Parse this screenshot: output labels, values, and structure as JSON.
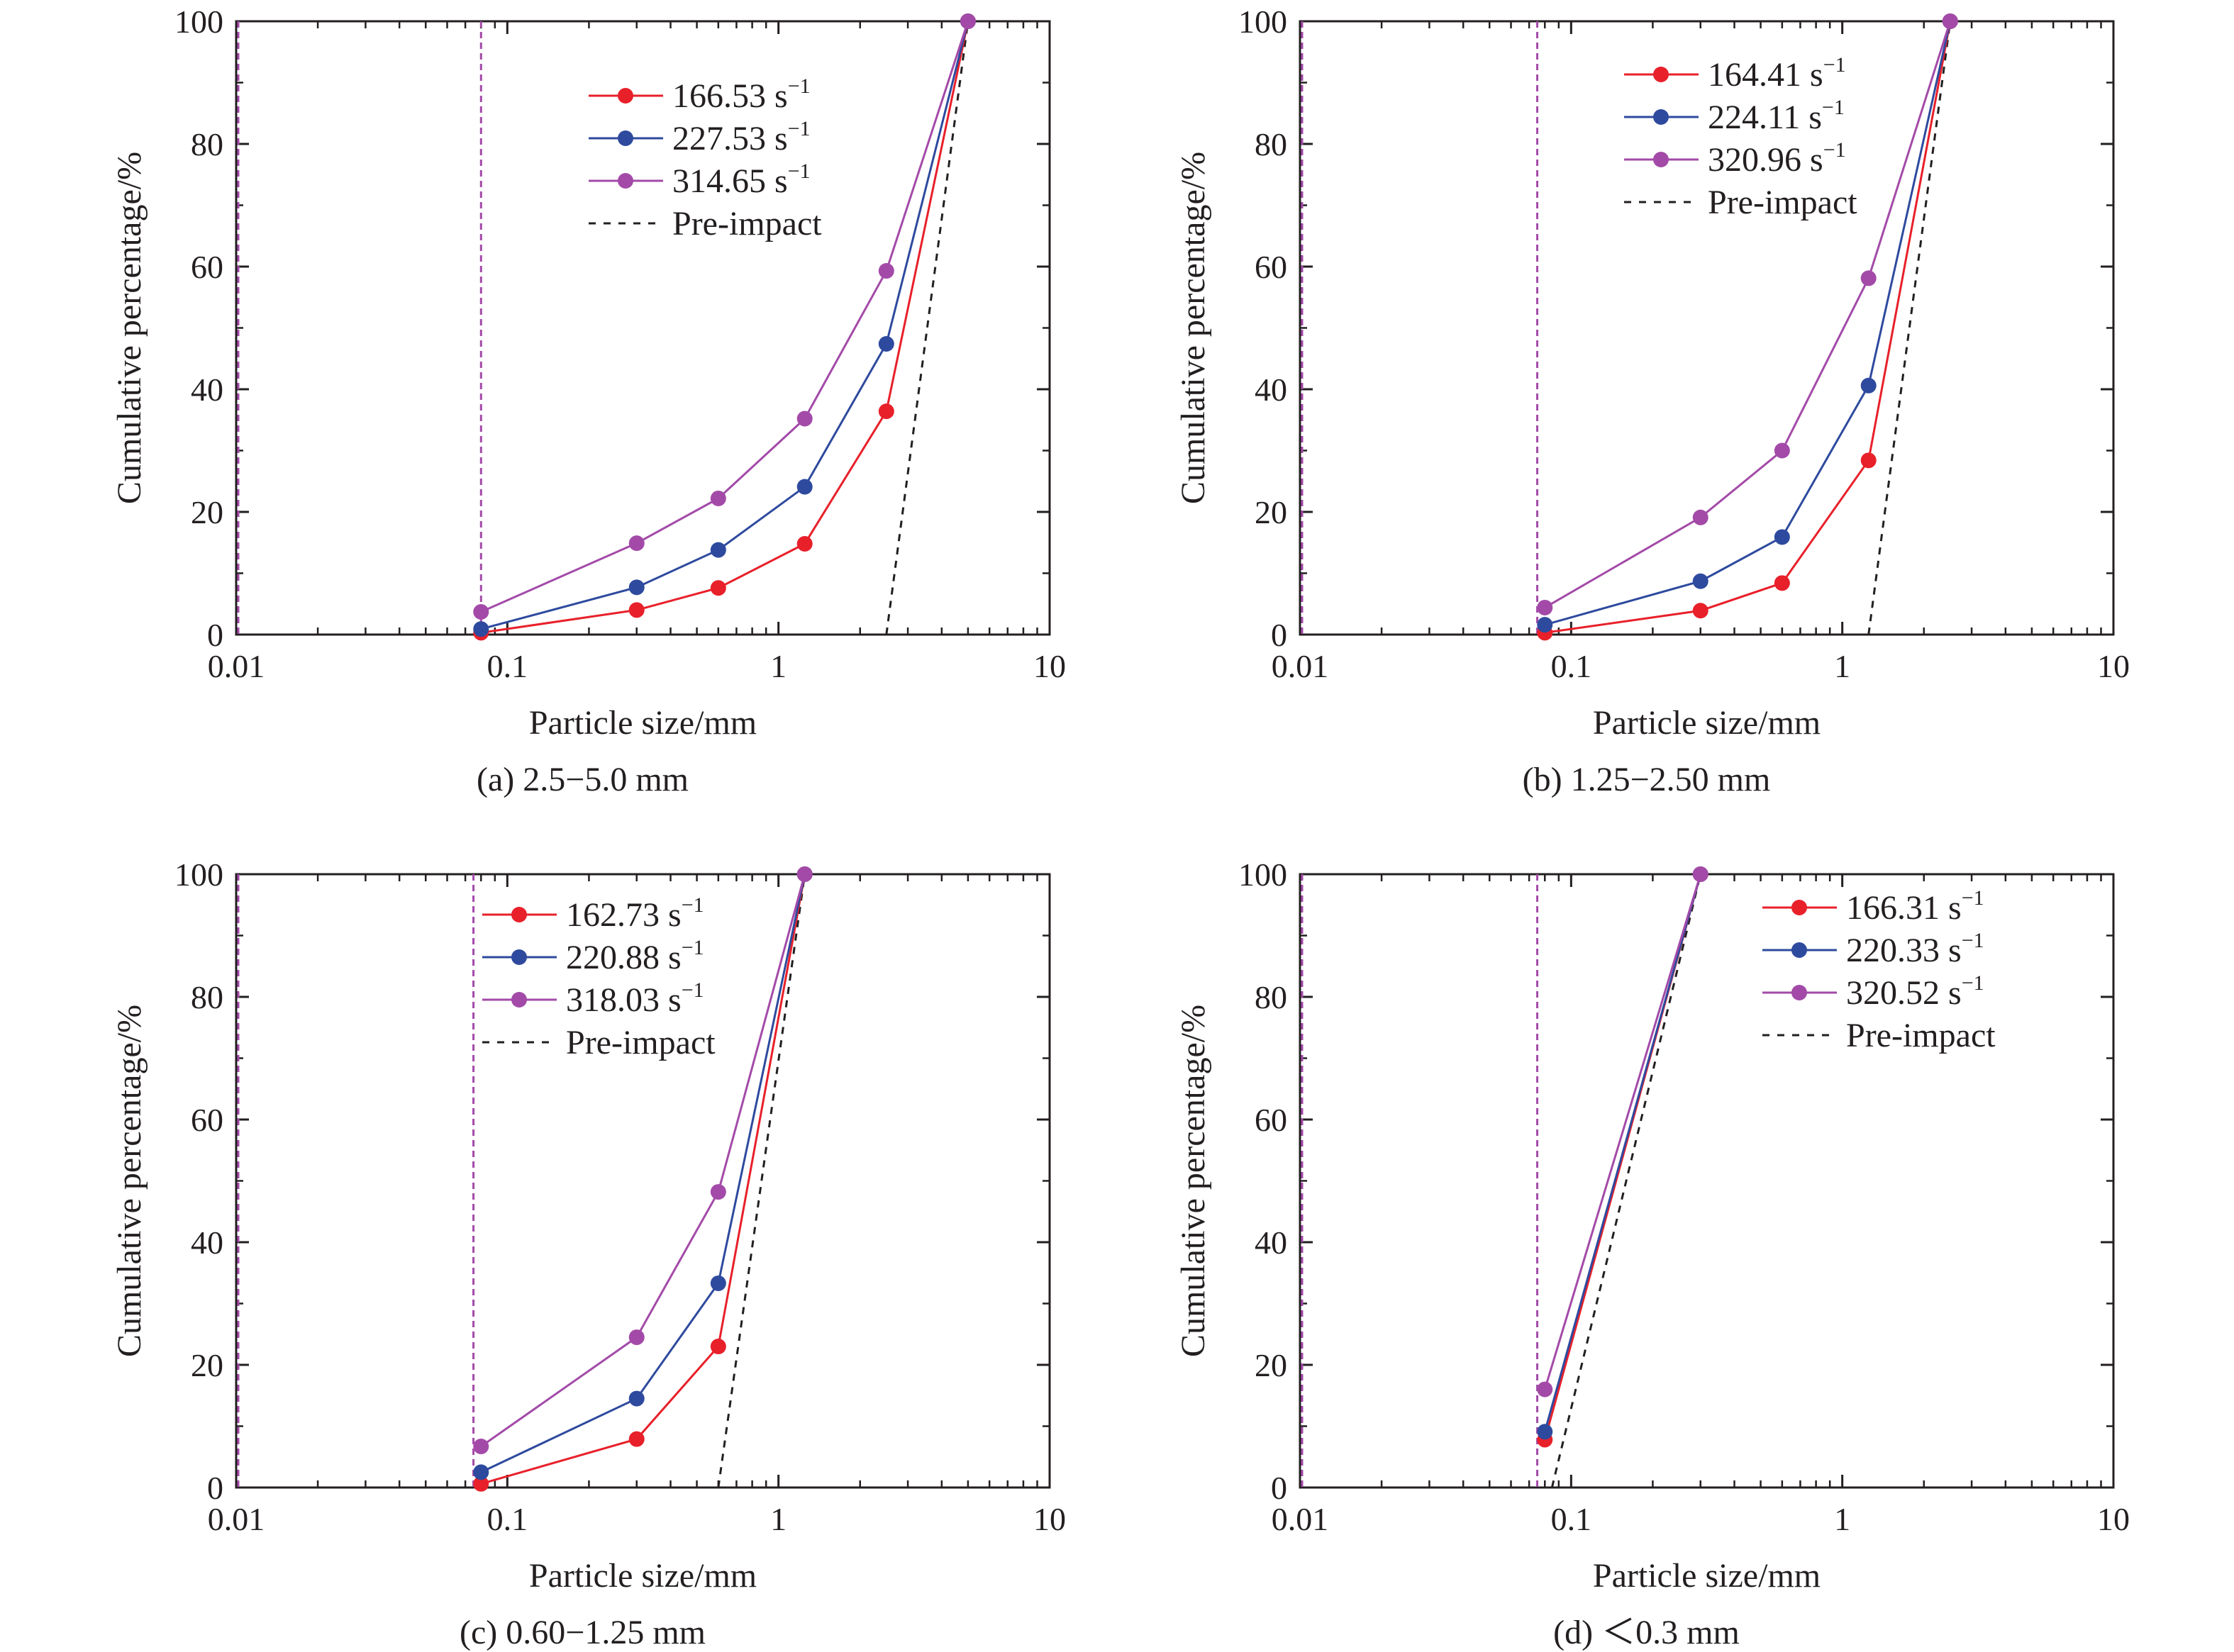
{
  "chart_data": [
    {
      "type": "line",
      "caption": "(a) 2.5−5.0 mm",
      "xlabel": "Particle size/mm",
      "ylabel": "Cumulative percentage/%",
      "xscale": "log",
      "xlim": [
        0.01,
        10
      ],
      "ylim": [
        0,
        100
      ],
      "xticks": [
        "0.01",
        "0.1",
        "1",
        "10"
      ],
      "yticks": [
        "0",
        "20",
        "40",
        "60",
        "80",
        "100"
      ],
      "legend_position": "top-center",
      "x": [
        0.08,
        0.3,
        0.6,
        1.25,
        2.5,
        5.0
      ],
      "series": [
        {
          "name": "166.53 s",
          "sup": "−1",
          "color": "#e8202a",
          "values": [
            0.3,
            4.0,
            7.6,
            14.8,
            36.4,
            100
          ]
        },
        {
          "name": "227.53 s",
          "sup": "−1",
          "color": "#2e4a9e",
          "values": [
            0.9,
            7.7,
            13.8,
            24.1,
            47.4,
            100
          ]
        },
        {
          "name": "314.65 s",
          "sup": "−1",
          "color": "#a34aa8",
          "values": [
            3.7,
            14.9,
            22.2,
            35.2,
            59.3,
            100
          ]
        }
      ],
      "pre_impact": {
        "name": "Pre-impact",
        "x": [
          2.5,
          5.0
        ],
        "values": [
          0,
          100
        ],
        "color": "#231f20"
      },
      "vertical_reference_x": [
        0.01,
        0.08
      ]
    },
    {
      "type": "line",
      "caption": "(b) 1.25−2.50 mm",
      "xlabel": "Particle size/mm",
      "ylabel": "Cumulative percentage/%",
      "xscale": "log",
      "xlim": [
        0.01,
        10
      ],
      "ylim": [
        0,
        100
      ],
      "xticks": [
        "0.01",
        "0.1",
        "1",
        "10"
      ],
      "yticks": [
        "0",
        "20",
        "40",
        "60",
        "80",
        "100"
      ],
      "legend_position": "top-center",
      "x": [
        0.08,
        0.3,
        0.6,
        1.25,
        2.5
      ],
      "series": [
        {
          "name": "164.41 s",
          "sup": "−1",
          "color": "#e8202a",
          "values": [
            0.3,
            3.9,
            8.4,
            28.4,
            100
          ]
        },
        {
          "name": "224.11 s",
          "sup": "−1",
          "color": "#2e4a9e",
          "values": [
            1.6,
            8.7,
            15.9,
            40.6,
            100
          ]
        },
        {
          "name": "320.96 s",
          "sup": "−1",
          "color": "#a34aa8",
          "values": [
            4.4,
            19.1,
            30.0,
            58.1,
            100
          ]
        }
      ],
      "pre_impact": {
        "name": "Pre-impact",
        "x": [
          1.25,
          2.5
        ],
        "values": [
          0,
          100
        ],
        "color": "#231f20"
      },
      "vertical_reference_x": [
        0.01,
        0.075
      ]
    },
    {
      "type": "line",
      "caption": "(c) 0.60−1.25 mm",
      "xlabel": "Particle size/mm",
      "ylabel": "Cumulative percentage/%",
      "xscale": "log",
      "xlim": [
        0.01,
        10
      ],
      "ylim": [
        0,
        100
      ],
      "xticks": [
        "0.01",
        "0.1",
        "1",
        "10"
      ],
      "yticks": [
        "0",
        "20",
        "40",
        "60",
        "80",
        "100"
      ],
      "legend_position": "top-center",
      "x": [
        0.08,
        0.3,
        0.6,
        1.25
      ],
      "series": [
        {
          "name": "162.73 s",
          "sup": "−1",
          "color": "#e8202a",
          "values": [
            0.6,
            7.9,
            23.0,
            100
          ]
        },
        {
          "name": "220.88 s",
          "sup": "−1",
          "color": "#2e4a9e",
          "values": [
            2.5,
            14.5,
            33.3,
            100
          ]
        },
        {
          "name": "318.03 s",
          "sup": "−1",
          "color": "#a34aa8",
          "values": [
            6.7,
            24.5,
            48.2,
            100
          ]
        }
      ],
      "pre_impact": {
        "name": "Pre-impact",
        "x": [
          0.6,
          1.25
        ],
        "values": [
          0,
          100
        ],
        "color": "#231f20"
      },
      "vertical_reference_x": [
        0.01,
        0.075
      ]
    },
    {
      "type": "line",
      "caption": "(d) ＜0.3 mm",
      "xlabel": "Particle size/mm",
      "ylabel": "Cumulative percentage/%",
      "xscale": "log",
      "xlim": [
        0.01,
        10
      ],
      "ylim": [
        0,
        100
      ],
      "xticks": [
        "0.01",
        "0.1",
        "1",
        "10"
      ],
      "yticks": [
        "0",
        "20",
        "40",
        "60",
        "80",
        "100"
      ],
      "legend_position": "top-right",
      "x": [
        0.08,
        0.3
      ],
      "series": [
        {
          "name": "166.31 s",
          "sup": "−1",
          "color": "#e8202a",
          "values": [
            7.8,
            100
          ]
        },
        {
          "name": "220.33 s",
          "sup": "−1",
          "color": "#2e4a9e",
          "values": [
            9.1,
            100
          ]
        },
        {
          "name": "320.52 s",
          "sup": "−1",
          "color": "#a34aa8",
          "values": [
            16.0,
            100
          ]
        }
      ],
      "pre_impact": {
        "name": "Pre-impact",
        "x": [
          0.085,
          0.3
        ],
        "values": [
          0,
          100
        ],
        "color": "#231f20"
      },
      "vertical_reference_x": [
        0.01,
        0.075
      ]
    }
  ]
}
